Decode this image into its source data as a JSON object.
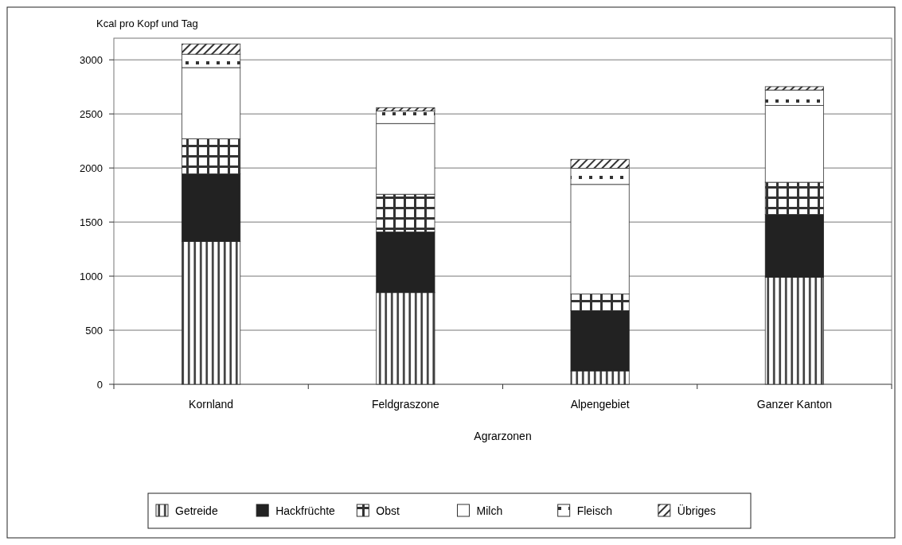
{
  "chart_data": {
    "type": "bar",
    "stacked": true,
    "ylabel": "Kcal pro Kopf und Tag",
    "xlabel": "Agrarzonen",
    "categories": [
      "Kornland",
      "Feldgraszone",
      "Alpengebiet",
      "Ganzer Kanton"
    ],
    "series": [
      {
        "name": "Getreide",
        "color": "#333333",
        "values": [
          1320,
          848,
          124,
          990
        ]
      },
      {
        "name": "Hackfrüchte",
        "color": "#222222",
        "values": [
          626,
          560,
          556,
          581
        ]
      },
      {
        "name": "Obst",
        "color": "#333333",
        "values": [
          323,
          349,
          155,
          297
        ]
      },
      {
        "name": "Milch",
        "color": "#333333",
        "values": [
          659,
          654,
          1013,
          711
        ]
      },
      {
        "name": "Fleisch",
        "color": "#333333",
        "values": [
          124,
          116,
          149,
          142
        ]
      },
      {
        "name": "Übriges",
        "color": "#333333",
        "values": [
          95,
          31,
          83,
          31
        ]
      }
    ],
    "ylim": [
      0,
      3200
    ],
    "yticks": [
      0,
      500,
      1000,
      1500,
      2000,
      2500,
      3000
    ],
    "grid": "y",
    "legend": "bottom"
  }
}
